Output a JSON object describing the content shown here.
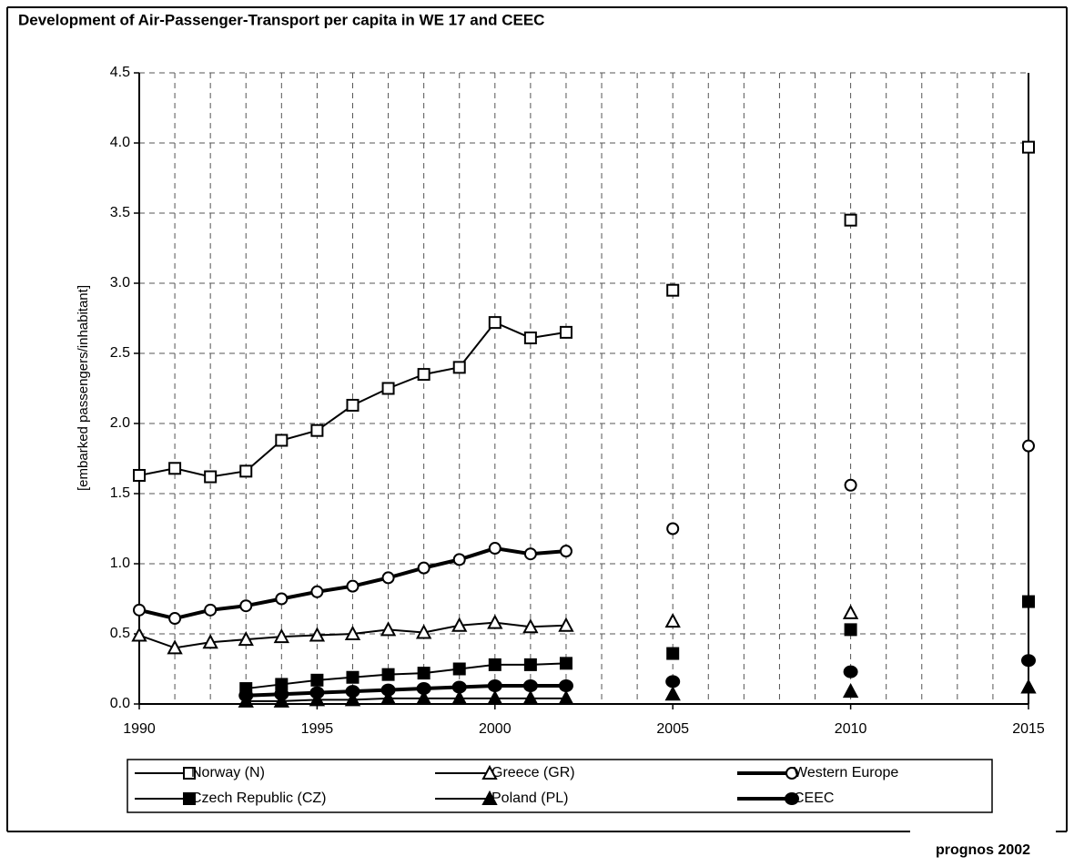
{
  "chart_data": {
    "type": "line",
    "title": "Development of Air-Passenger-Transport per capita in WE 17 and CEEC",
    "ylabel": "[embarked passengers/inhabitant]",
    "source": "prognos 2002",
    "x": [
      1990,
      1991,
      1992,
      1993,
      1994,
      1995,
      1996,
      1997,
      1998,
      1999,
      2000,
      2001,
      2002,
      2003,
      2004,
      2005,
      2006,
      2007,
      2008,
      2009,
      2010,
      2011,
      2012,
      2013,
      2014,
      2015
    ],
    "xlim": [
      1990,
      2015
    ],
    "xticks": [
      1990,
      1995,
      2000,
      2005,
      2010,
      2015
    ],
    "ylim": [
      0,
      4.5
    ],
    "yticks": [
      {
        "value": 0,
        "label": "0.0"
      },
      0.5,
      {
        "value": 1,
        "label": "1.0"
      },
      1.5,
      {
        "value": 2,
        "label": "2.0"
      },
      2.5,
      {
        "value": 3,
        "label": "3.0"
      },
      3.5,
      {
        "value": 4,
        "label": "4.0"
      },
      4.5
    ],
    "grid": true,
    "legend": "bottom",
    "series": [
      {
        "name": "Norway (N)",
        "color": "#000000",
        "marker": "square",
        "filled": false,
        "thick": false,
        "values": [
          1.63,
          1.68,
          1.62,
          1.66,
          1.88,
          1.95,
          2.13,
          2.25,
          2.35,
          2.4,
          2.72,
          2.61,
          2.65,
          null,
          null,
          2.95,
          null,
          null,
          null,
          null,
          3.45,
          null,
          null,
          null,
          null,
          3.97
        ]
      },
      {
        "name": "Greece (GR)",
        "color": "#000000",
        "marker": "triangle",
        "filled": false,
        "thick": false,
        "values": [
          0.49,
          0.4,
          0.44,
          0.46,
          0.48,
          0.49,
          0.5,
          0.53,
          0.51,
          0.56,
          0.58,
          0.55,
          0.56,
          null,
          null,
          0.59,
          null,
          null,
          null,
          null,
          0.65,
          null,
          null,
          null,
          null,
          null
        ]
      },
      {
        "name": "Western Europe",
        "color": "#000000",
        "marker": "circle",
        "filled": false,
        "thick": true,
        "values": [
          0.67,
          0.61,
          0.67,
          0.7,
          0.75,
          0.8,
          0.84,
          0.9,
          0.97,
          1.03,
          1.11,
          1.07,
          1.09,
          null,
          null,
          1.25,
          null,
          null,
          null,
          null,
          1.56,
          null,
          null,
          null,
          null,
          1.84
        ]
      },
      {
        "name": "Czech Republic (CZ)",
        "color": "#000000",
        "marker": "square",
        "filled": true,
        "thick": false,
        "values": [
          null,
          null,
          null,
          0.11,
          0.14,
          0.17,
          0.19,
          0.21,
          0.22,
          0.25,
          0.28,
          0.28,
          0.29,
          null,
          null,
          0.36,
          null,
          null,
          null,
          null,
          0.53,
          null,
          null,
          null,
          null,
          0.73
        ]
      },
      {
        "name": "Poland (PL)",
        "color": "#000000",
        "marker": "triangle",
        "filled": true,
        "thick": false,
        "values": [
          null,
          null,
          null,
          0.02,
          0.02,
          0.03,
          0.03,
          0.04,
          0.04,
          0.04,
          0.04,
          0.04,
          0.04,
          null,
          null,
          0.07,
          null,
          null,
          null,
          null,
          0.09,
          null,
          null,
          null,
          null,
          0.12
        ]
      },
      {
        "name": "CEEC",
        "color": "#000000",
        "marker": "circle",
        "filled": true,
        "thick": true,
        "values": [
          null,
          null,
          null,
          0.06,
          0.07,
          0.08,
          0.09,
          0.1,
          0.11,
          0.12,
          0.13,
          0.13,
          0.13,
          null,
          null,
          0.16,
          null,
          null,
          null,
          null,
          0.23,
          null,
          null,
          null,
          null,
          0.31
        ]
      }
    ]
  }
}
